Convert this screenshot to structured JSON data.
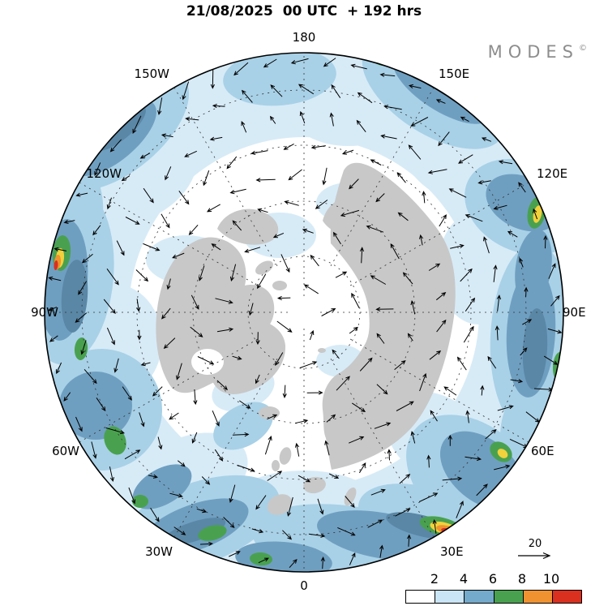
{
  "header": {
    "title": "21/08/2025  00 UTC  + 192 hrs"
  },
  "brand": {
    "name": "MODES",
    "mark": "©"
  },
  "map": {
    "longitude_labels": [
      "180",
      "150W",
      "150E",
      "120W",
      "120E",
      "90W",
      "90E",
      "60W",
      "60E",
      "30W",
      "30E",
      "0"
    ]
  },
  "legend": {
    "ticks": [
      "2",
      "4",
      "6",
      "8",
      "10"
    ],
    "colors": [
      "#ffffff",
      "#c9e5f6",
      "#74aacb",
      "#49a14f",
      "#f0922f",
      "#d93020"
    ],
    "reference_arrow_label": "20"
  }
}
